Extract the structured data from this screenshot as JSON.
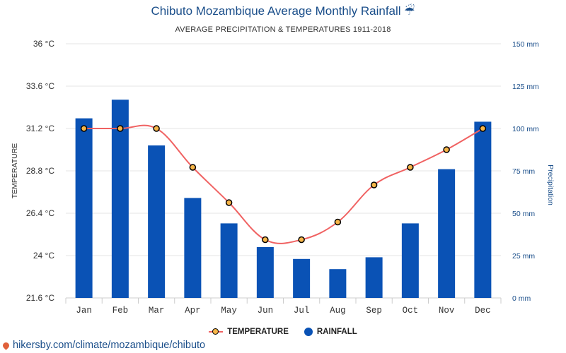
{
  "header": {
    "title": "Chibuto Mozambique Average Monthly Rainfall",
    "title_icon": "umbrella-rain-icon",
    "subtitle": "AVERAGE PRECIPITATION & TEMPERATURES 1911-2018"
  },
  "legend": {
    "temperature": "TEMPERATURE",
    "rainfall": "RAINFALL"
  },
  "source": {
    "text": "hikersby.com/climate/mozambique/chibuto",
    "icon": "map-pin-icon"
  },
  "chart_data": {
    "type": "bar",
    "categories": [
      "Jan",
      "Feb",
      "Mar",
      "Apr",
      "May",
      "Jun",
      "Jul",
      "Aug",
      "Sep",
      "Oct",
      "Nov",
      "Dec"
    ],
    "series": [
      {
        "name": "RAINFALL",
        "type": "bar",
        "axis": "right",
        "color": "#0a52b5",
        "values": [
          106,
          117,
          90,
          59,
          44,
          30,
          23,
          17,
          24,
          44,
          76,
          104
        ]
      },
      {
        "name": "TEMPERATURE",
        "type": "line",
        "axis": "left",
        "color": "#f06262",
        "marker_color": "#f7b548",
        "values": [
          31.2,
          31.2,
          31.2,
          29.0,
          27.0,
          24.9,
          24.9,
          25.9,
          28.0,
          29.0,
          30.0,
          31.2
        ]
      }
    ],
    "y_left": {
      "label": "TEMPERATURE",
      "min": 21.6,
      "max": 36,
      "ticks": [
        21.6,
        24,
        26.4,
        28.8,
        31.2,
        33.6,
        36
      ],
      "tick_labels": [
        "21.6 °C",
        "24 °C",
        "26.4 °C",
        "28.8 °C",
        "31.2 °C",
        "33.6 °C",
        "36 °C"
      ]
    },
    "y_right": {
      "label": "Precipitation",
      "min": 0,
      "max": 150,
      "ticks": [
        0,
        25,
        50,
        75,
        100,
        125,
        150
      ],
      "tick_labels": [
        "0 mm",
        "25 mm",
        "50 mm",
        "75 mm",
        "100 mm",
        "125 mm",
        "150 mm"
      ]
    },
    "grid": true,
    "legend_position": "bottom"
  }
}
